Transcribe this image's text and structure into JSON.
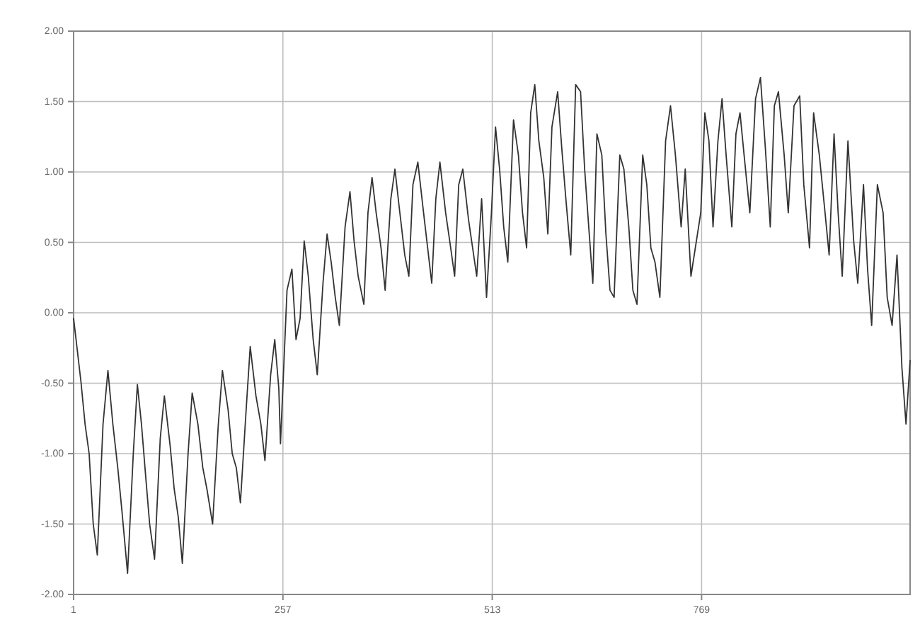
{
  "chart_data": {
    "type": "line",
    "color": "#333333",
    "grid": true,
    "marker": "none",
    "line_style": "solid",
    "x": [
      1,
      10,
      15,
      20,
      25,
      30,
      37,
      43,
      49,
      55,
      60,
      67,
      74,
      79,
      84,
      89,
      94,
      100,
      107,
      112,
      119,
      124,
      129,
      134,
      141,
      146,
      153,
      159,
      164,
      171,
      178,
      183,
      190,
      195,
      200,
      205,
      212,
      217,
      224,
      230,
      235,
      242,
      247,
      252,
      254,
      262,
      268,
      273,
      278,
      283,
      288,
      294,
      299,
      306,
      311,
      316,
      321,
      326,
      333,
      339,
      344,
      349,
      356,
      361,
      366,
      371,
      377,
      382,
      389,
      394,
      399,
      406,
      411,
      416,
      422,
      429,
      434,
      439,
      444,
      449,
      456,
      461,
      467,
      472,
      477,
      484,
      489,
      494,
      500,
      506,
      512,
      517,
      522,
      527,
      532,
      539,
      545,
      550,
      555,
      560,
      565,
      570,
      576,
      581,
      586,
      593,
      598,
      603,
      609,
      615,
      621,
      626,
      631,
      636,
      641,
      647,
      652,
      657,
      662,
      669,
      674,
      680,
      685,
      690,
      697,
      702,
      707,
      712,
      718,
      725,
      731,
      737,
      744,
      749,
      756,
      768,
      773,
      778,
      783,
      789,
      794,
      799,
      806,
      811,
      816,
      821,
      828,
      835,
      841,
      847,
      853,
      858,
      863,
      870,
      875,
      882,
      889,
      894,
      901,
      906,
      913,
      920,
      925,
      931,
      936,
      941,
      948,
      955,
      960,
      967,
      972,
      977,
      984,
      991,
      996,
      1002,
      1008,
      1014,
      1019,
      1024
    ],
    "values": [
      -0.04,
      -0.49,
      -0.79,
      -1.0,
      -1.5,
      -1.72,
      -0.79,
      -0.41,
      -0.79,
      -1.1,
      -1.4,
      -1.85,
      -1.0,
      -0.51,
      -0.79,
      -1.15,
      -1.5,
      -1.75,
      -0.89,
      -0.59,
      -0.94,
      -1.25,
      -1.45,
      -1.78,
      -1.0,
      -0.57,
      -0.79,
      -1.1,
      -1.25,
      -1.5,
      -0.79,
      -0.41,
      -0.69,
      -1.0,
      -1.1,
      -1.35,
      -0.69,
      -0.24,
      -0.59,
      -0.79,
      -1.05,
      -0.44,
      -0.19,
      -0.54,
      -0.93,
      0.16,
      0.31,
      -0.19,
      -0.04,
      0.51,
      0.26,
      -0.19,
      -0.44,
      0.21,
      0.56,
      0.36,
      0.11,
      -0.09,
      0.61,
      0.86,
      0.51,
      0.26,
      0.06,
      0.71,
      0.96,
      0.71,
      0.46,
      0.16,
      0.81,
      1.02,
      0.76,
      0.41,
      0.26,
      0.91,
      1.07,
      0.71,
      0.46,
      0.21,
      0.81,
      1.07,
      0.71,
      0.51,
      0.26,
      0.91,
      1.02,
      0.66,
      0.46,
      0.26,
      0.81,
      0.11,
      0.71,
      1.32,
      1.02,
      0.61,
      0.36,
      1.37,
      1.12,
      0.71,
      0.46,
      1.42,
      1.62,
      1.22,
      0.96,
      0.56,
      1.32,
      1.57,
      1.17,
      0.81,
      0.41,
      1.62,
      1.57,
      1.02,
      0.61,
      0.21,
      1.27,
      1.12,
      0.56,
      0.16,
      0.11,
      1.12,
      1.02,
      0.61,
      0.16,
      0.06,
      1.12,
      0.91,
      0.46,
      0.36,
      0.11,
      1.22,
      1.47,
      1.12,
      0.61,
      1.02,
      0.26,
      0.71,
      1.42,
      1.22,
      0.61,
      1.22,
      1.52,
      1.12,
      0.61,
      1.27,
      1.42,
      1.12,
      0.71,
      1.52,
      1.67,
      1.17,
      0.61,
      1.47,
      1.57,
      1.12,
      0.71,
      1.47,
      1.54,
      0.91,
      0.46,
      1.42,
      1.12,
      0.71,
      0.41,
      1.27,
      0.71,
      0.26,
      1.22,
      0.51,
      0.21,
      0.91,
      0.31,
      -0.09,
      0.91,
      0.71,
      0.11,
      -0.09,
      0.41,
      -0.39,
      -0.79,
      -0.34
    ],
    "xlim": [
      1,
      1024
    ],
    "xticks": [
      1,
      257,
      513,
      769
    ],
    "ylim": [
      -2,
      2
    ],
    "yticks": [
      {
        "value": -2,
        "label": "-2.00"
      },
      {
        "value": -1.5,
        "label": "-1.50"
      },
      {
        "value": -1,
        "label": "-1.00"
      },
      {
        "value": -0.5,
        "label": "-0.50"
      },
      {
        "value": 0,
        "label": "0.00"
      },
      {
        "value": 0.5,
        "label": "0.50"
      },
      {
        "value": 1,
        "label": "1.00"
      },
      {
        "value": 1.5,
        "label": "1.50"
      },
      {
        "value": 2,
        "label": "2.00"
      }
    ]
  }
}
